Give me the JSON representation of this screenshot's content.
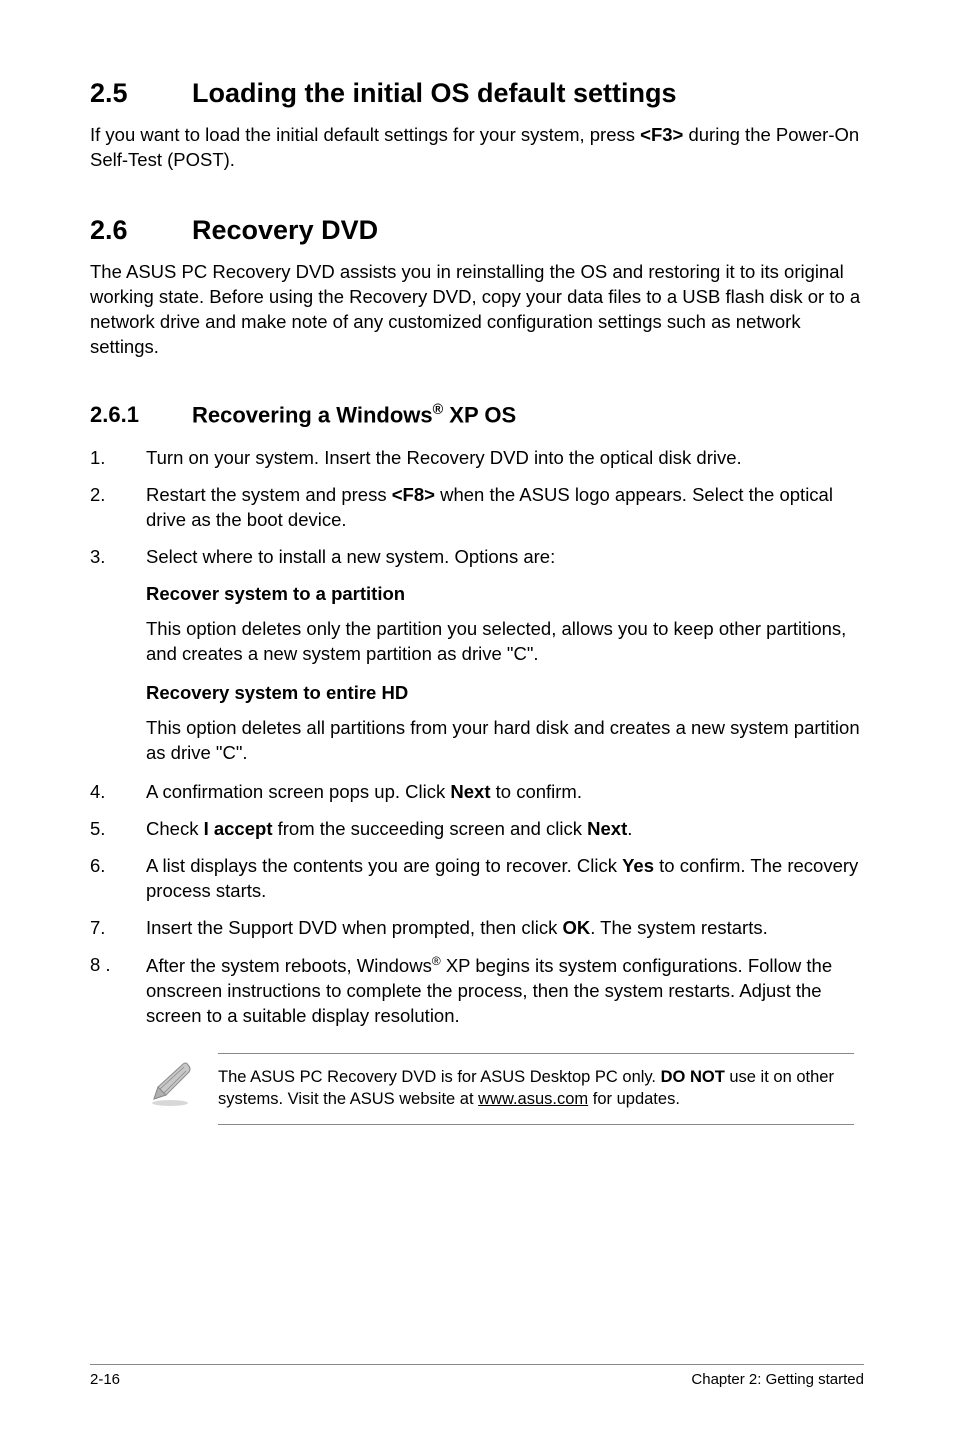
{
  "section25": {
    "num": "2.5",
    "title": "Loading the initial OS default settings",
    "body": "If you want to load the initial default settings for your system, press <b>&lt;F3&gt;</b> during the Power-On Self-Test (POST)."
  },
  "section26": {
    "num": "2.6",
    "title": "Recovery DVD",
    "body": "The ASUS PC Recovery DVD assists you in reinstalling the OS and restoring it to its original working state. Before using the Recovery DVD, copy your data files to a USB flash disk or to a network drive and make note of any customized configuration settings such as network settings."
  },
  "sub261": {
    "num": "2.6.1",
    "title": "Recovering a Windows<sup>®</sup> XP OS"
  },
  "list1": [
    {
      "n": "1.",
      "t": "Turn on your system. Insert the Recovery DVD into the optical disk drive."
    },
    {
      "n": "2.",
      "t": "Restart the system and press <b>&lt;F8&gt;</b> when the ASUS logo appears. Select the optical drive as the boot device."
    },
    {
      "n": "3.",
      "t": "Select where to install a new system. Options are:"
    }
  ],
  "opt1": {
    "title": "Recover system to a partition",
    "body": "This option deletes only the partition you selected, allows you to keep other partitions, and creates a new system partition as drive \"C\"."
  },
  "opt2": {
    "title": "Recovery system to entire HD",
    "body": "This option deletes all partitions from your hard disk and creates a new system partition as drive \"C\"."
  },
  "list2": [
    {
      "n": "4.",
      "t": "A confirmation screen pops up. Click <b>Next</b> to confirm."
    },
    {
      "n": "5.",
      "t": "Check <b>I accept</b> from the succeeding screen and click <b>Next</b>."
    },
    {
      "n": "6.",
      "t": "A list displays the contents you are going to recover. Click <b>Yes</b> to confirm. The recovery process starts."
    },
    {
      "n": "7.",
      "t": "Insert the Support DVD when prompted, then click <b>OK</b>. The system restarts."
    },
    {
      "n": "8 .",
      "t": "After the system reboots, Windows<sup>®</sup> XP begins its system configurations. Follow the onscreen instructions to complete the process, then the system restarts. Adjust the screen to a suitable display resolution."
    }
  ],
  "note": "The ASUS PC Recovery DVD is for ASUS Desktop PC only. <b>DO NOT</b> use it on other systems. Visit the ASUS website at <span class=\"underline\">www.asus.com</span> for updates.",
  "footer": {
    "left": "2-16",
    "right": "Chapter 2: Getting started"
  },
  "colors": {
    "text": "#000000",
    "divider": "#888888",
    "background": "#ffffff"
  }
}
